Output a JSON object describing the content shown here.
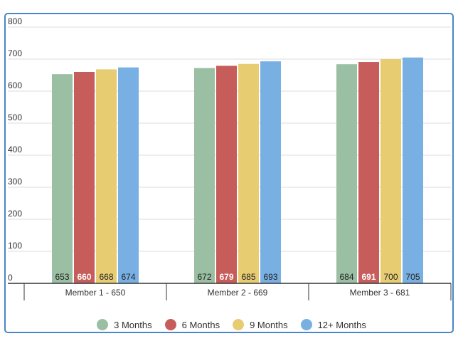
{
  "chart_data": {
    "type": "bar",
    "categories": [
      "Member 1 - 650",
      "Member 2 - 669",
      "Member 3 - 681"
    ],
    "series": [
      {
        "name": "3 Months",
        "color": "#9bbfa3",
        "values": [
          653,
          672,
          684
        ]
      },
      {
        "name": "6 Months",
        "color": "#c75d5a",
        "values": [
          660,
          679,
          691
        ]
      },
      {
        "name": "9 Months",
        "color": "#e8cc72",
        "values": [
          668,
          685,
          700
        ]
      },
      {
        "name": "12+ Months",
        "color": "#79b0e3",
        "values": [
          674,
          693,
          705
        ]
      }
    ],
    "ylim": [
      0,
      800
    ],
    "yticks": [
      "0",
      "100",
      "200",
      "300",
      "400",
      "500",
      "600",
      "700",
      "800"
    ],
    "grid": true,
    "legend_position": "bottom",
    "data_labels": true
  }
}
